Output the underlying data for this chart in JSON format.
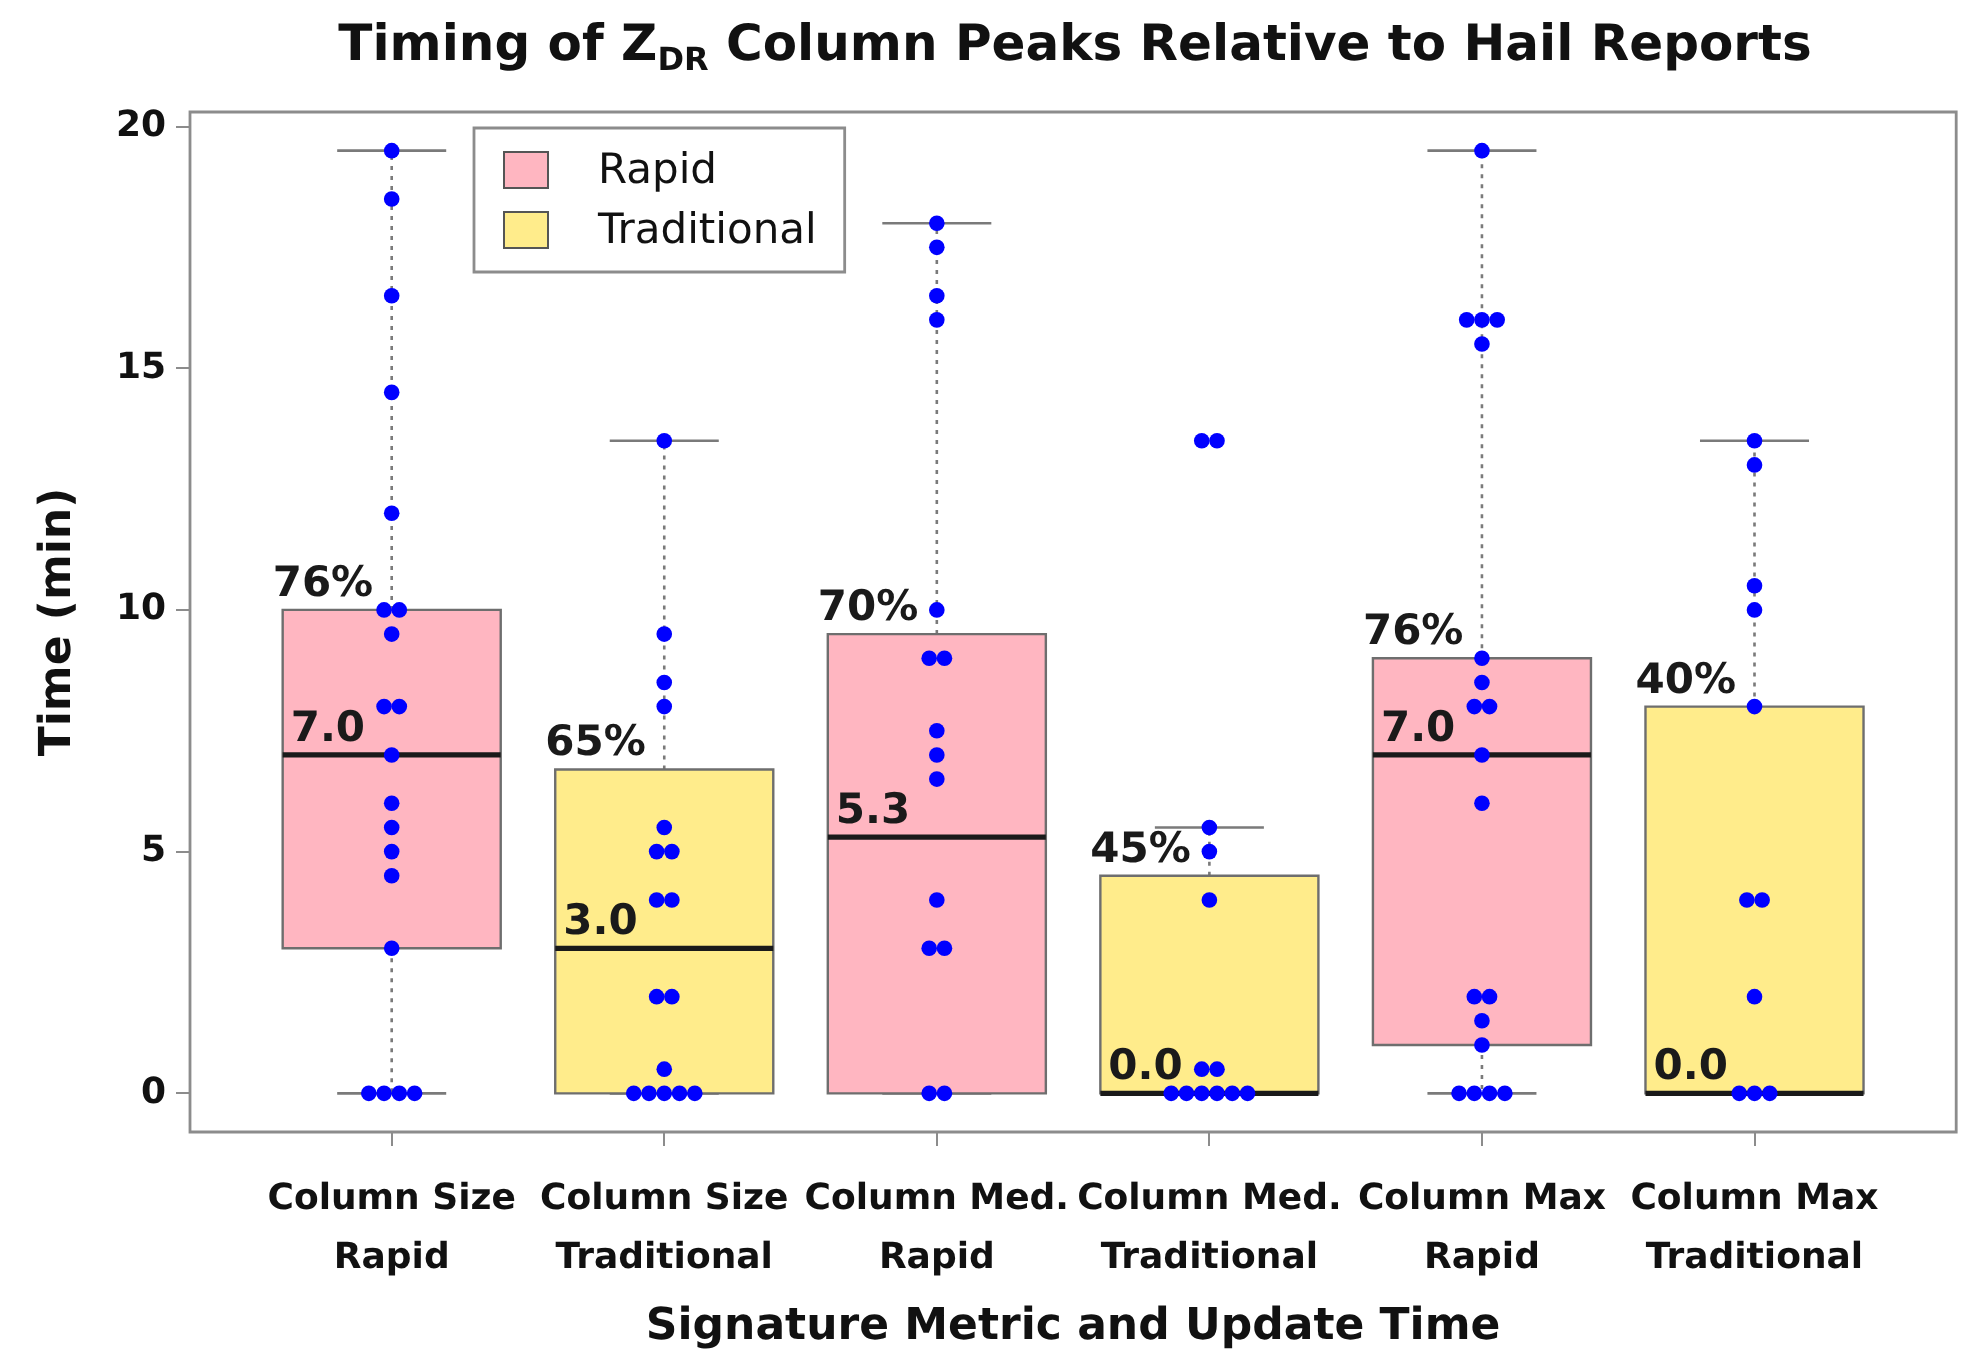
{
  "chart_data": {
    "type": "box",
    "title": "Timing of Z$_{DR}$ Column Peaks Relative to Hail Reports",
    "xlabel": "Signature Metric and Update Time",
    "ylabel": "Time (min)",
    "categories": [
      "Column Size Rapid",
      "Column Size Traditional",
      "Column Med. Rapid",
      "Column Med. Traditional",
      "Column Max Rapid",
      "Column Max Traditional"
    ],
    "ylim": [
      -0.8,
      20.3
    ],
    "yticks": [
      0,
      5,
      10,
      15,
      20
    ],
    "legend": "top left",
    "series": [
      {
        "name": "Rapid",
        "color": "#ffb6c1",
        "boxes": [
          {
            "low": 0,
            "q1": 3,
            "median": 7,
            "q3": 10,
            "high": 19.5
          },
          null,
          {
            "low": 0,
            "q1": 0,
            "median": 5.3,
            "q3": 9.5,
            "high": 18
          },
          null,
          {
            "low": 0,
            "q1": 1,
            "median": 7,
            "q3": 9,
            "high": 19.5
          },
          null
        ]
      },
      {
        "name": "Traditional",
        "color": "#ffec8b",
        "boxes": [
          null,
          {
            "low": 0,
            "q1": 0,
            "median": 3,
            "q3": 6.7,
            "high": 13.5
          },
          null,
          {
            "low": 0,
            "q1": 0,
            "median": 0,
            "q3": 4.5,
            "high": 5.5
          },
          null,
          {
            "low": 0,
            "q1": 0,
            "median": 0,
            "q3": 8,
            "high": 13.5
          }
        ]
      },
      {
        "type": "scatter",
        "color": "#0000ff",
        "marker": "circle",
        "x": [
          "Column Size Rapid",
          "Column Size Rapid",
          "Column Size Rapid",
          "Column Size Rapid",
          "Column Size Rapid",
          "Column Size Rapid",
          "Column Size Rapid",
          "Column Size Rapid",
          "Column Size Rapid",
          "Column Size Rapid",
          "Column Size Rapid",
          "Column Size Rapid",
          "Column Size Rapid",
          "Column Size Rapid",
          "Column Size Rapid",
          "Column Size Rapid",
          "Column Size Rapid",
          "Column Size Rapid",
          "Column Size Rapid",
          "Column Size Rapid",
          "Column Size Traditional",
          "Column Size Traditional",
          "Column Size Traditional",
          "Column Size Traditional",
          "Column Size Traditional",
          "Column Size Traditional",
          "Column Size Traditional",
          "Column Size Traditional",
          "Column Size Traditional",
          "Column Size Traditional",
          "Column Size Traditional",
          "Column Size Traditional",
          "Column Size Traditional",
          "Column Size Traditional",
          "Column Size Traditional",
          "Column Size Traditional",
          "Column Size Traditional",
          "Column Med. Rapid",
          "Column Med. Rapid",
          "Column Med. Rapid",
          "Column Med. Rapid",
          "Column Med. Rapid",
          "Column Med. Rapid",
          "Column Med. Rapid",
          "Column Med. Rapid",
          "Column Med. Rapid",
          "Column Med. Rapid",
          "Column Med. Rapid",
          "Column Med. Rapid",
          "Column Med. Rapid",
          "Column Med. Rapid",
          "Column Med. Rapid",
          "Column Med. Traditional",
          "Column Med. Traditional",
          "Column Med. Traditional",
          "Column Med. Traditional",
          "Column Med. Traditional",
          "Column Med. Traditional",
          "Column Med. Traditional",
          "Column Med. Traditional",
          "Column Med. Traditional",
          "Column Med. Traditional",
          "Column Med. Traditional",
          "Column Med. Traditional",
          "Column Med. Traditional",
          "Column Max Rapid",
          "Column Max Rapid",
          "Column Max Rapid",
          "Column Max Rapid",
          "Column Max Rapid",
          "Column Max Rapid",
          "Column Max Rapid",
          "Column Max Rapid",
          "Column Max Rapid",
          "Column Max Rapid",
          "Column Max Rapid",
          "Column Max Rapid",
          "Column Max Rapid",
          "Column Max Rapid",
          "Column Max Rapid",
          "Column Max Rapid",
          "Column Max Rapid",
          "Column Max Rapid",
          "Column Max Rapid",
          "Column Max Traditional",
          "Column Max Traditional",
          "Column Max Traditional",
          "Column Max Traditional",
          "Column Max Traditional",
          "Column Max Traditional",
          "Column Max Traditional",
          "Column Max Traditional",
          "Column Max Traditional",
          "Column Max Traditional",
          "Column Max Traditional"
        ],
        "values": [
          19.5,
          18.5,
          16.5,
          14.5,
          12,
          10,
          10,
          9.5,
          8,
          8,
          7,
          6,
          5.5,
          5,
          4.5,
          3,
          0,
          0,
          0,
          0,
          13.5,
          9.5,
          8.5,
          8,
          5.5,
          5,
          5,
          4,
          4,
          2,
          2,
          0.5,
          0,
          0,
          0,
          0,
          0,
          18,
          17.5,
          16.5,
          16,
          10,
          9,
          9,
          7.5,
          7,
          6.5,
          4,
          3,
          3,
          0,
          0,
          13.5,
          13.5,
          5.5,
          5,
          4,
          0.5,
          0.5,
          0,
          0,
          0,
          0,
          0,
          0,
          19.5,
          16,
          16,
          16,
          15.5,
          9,
          8.5,
          8,
          8,
          7,
          6,
          2,
          2,
          1.5,
          1,
          0,
          0,
          0,
          0,
          13.5,
          13,
          10.5,
          10,
          8,
          4,
          4,
          2,
          0,
          0,
          0
        ]
      }
    ],
    "annotations": [
      {
        "text": "76%",
        "x": "Column Size Rapid",
        "y": 10
      },
      {
        "text": "7.0",
        "x": "Column Size Rapid",
        "y": 7
      },
      {
        "text": "65%",
        "x": "Column Size Traditional",
        "y": 6.7
      },
      {
        "text": "3.0",
        "x": "Column Size Traditional",
        "y": 3
      },
      {
        "text": "70%",
        "x": "Column Med. Rapid",
        "y": 9.5
      },
      {
        "text": "5.3",
        "x": "Column Med. Rapid",
        "y": 5.3
      },
      {
        "text": "45%",
        "x": "Column Med. Traditional",
        "y": 4.5
      },
      {
        "text": "0.0",
        "x": "Column Med. Traditional",
        "y": 0
      },
      {
        "text": "76%",
        "x": "Column Max Rapid",
        "y": 9
      },
      {
        "text": "7.0",
        "x": "Column Max Rapid",
        "y": 7
      },
      {
        "text": "40%",
        "x": "Column Max Traditional",
        "y": 8
      },
      {
        "text": "0.0",
        "x": "Column Max Traditional",
        "y": 0
      }
    ]
  }
}
